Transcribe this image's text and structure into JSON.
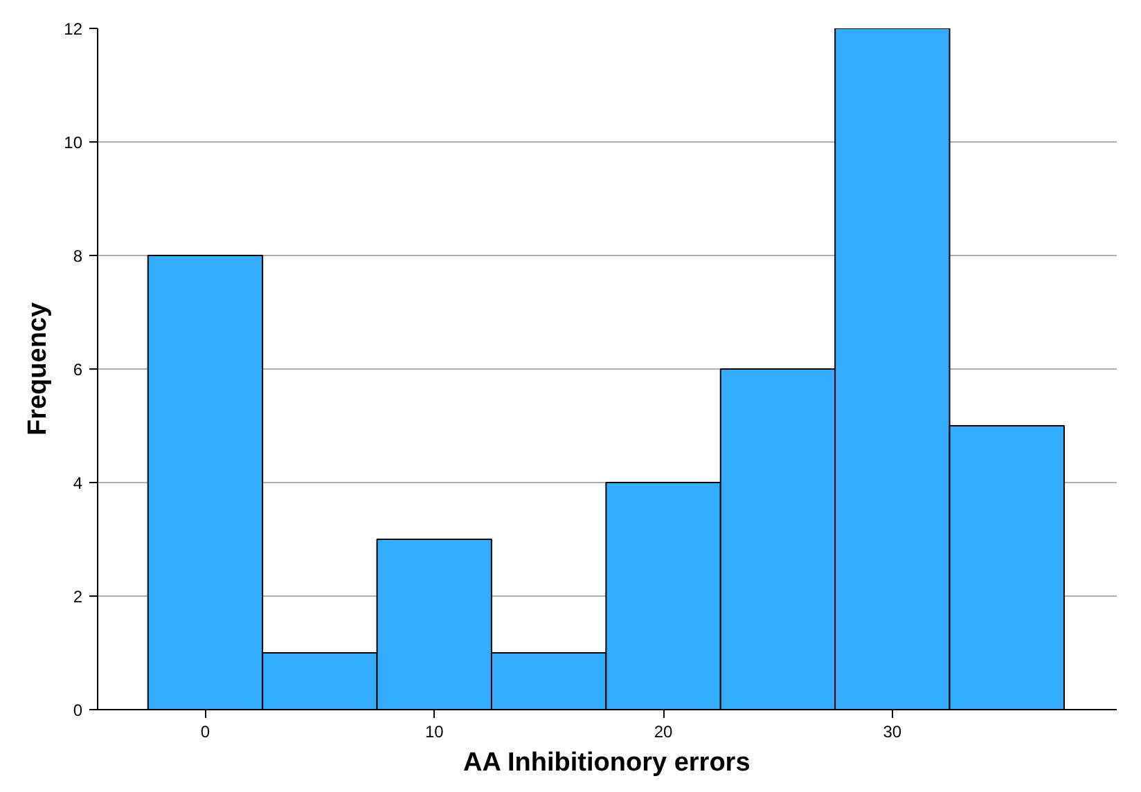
{
  "chart_data": {
    "type": "histogram",
    "xlabel": "AA Inhibitionory errors",
    "ylabel": "Frequency",
    "bins": [
      -2.5,
      2.5,
      7.5,
      12.5,
      17.5,
      22.5,
      27.5,
      32.5,
      37.5
    ],
    "values": [
      8,
      1,
      3,
      1,
      4,
      6,
      12,
      5
    ],
    "color": "#33adff",
    "xlim": [
      -4.7,
      39.8
    ],
    "xticks": [
      0,
      10,
      20,
      30
    ],
    "ylim": [
      0,
      12
    ],
    "yticks": [
      0,
      2,
      4,
      6,
      8,
      10,
      12
    ],
    "grid": "y"
  }
}
